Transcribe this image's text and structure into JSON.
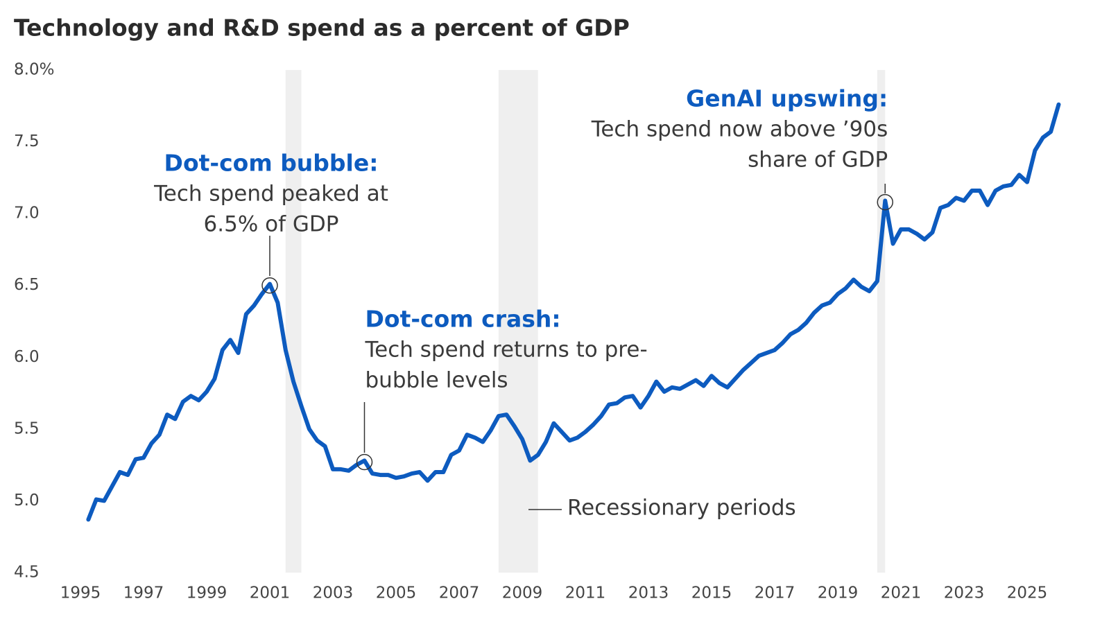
{
  "chart_data": {
    "type": "line",
    "title": "Technology and R&D spend as a percent of GDP",
    "x": [
      1995.25,
      1995.5,
      1995.75,
      1996,
      1996.25,
      1996.5,
      1996.75,
      1997,
      1997.25,
      1997.5,
      1997.75,
      1998,
      1998.25,
      1998.5,
      1998.75,
      1999,
      1999.25,
      1999.5,
      1999.75,
      2000,
      2000.25,
      2000.5,
      2000.75,
      2001,
      2001.25,
      2001.5,
      2001.75,
      2002,
      2002.25,
      2002.5,
      2002.75,
      2003,
      2003.25,
      2003.5,
      2003.75,
      2004,
      2004.25,
      2004.5,
      2004.75,
      2005,
      2005.25,
      2005.5,
      2005.75,
      2006,
      2006.25,
      2006.5,
      2006.75,
      2007,
      2007.25,
      2007.5,
      2007.75,
      2008,
      2008.25,
      2008.5,
      2008.75,
      2009,
      2009.25,
      2009.5,
      2009.75,
      2010,
      2010.25,
      2010.5,
      2010.75,
      2011,
      2011.25,
      2011.5,
      2011.75,
      2012,
      2012.25,
      2012.5,
      2012.75,
      2013,
      2013.25,
      2013.5,
      2013.75,
      2014,
      2014.25,
      2014.5,
      2014.75,
      2015,
      2015.25,
      2015.5,
      2015.75,
      2016,
      2016.25,
      2016.5,
      2016.75,
      2017,
      2017.25,
      2017.5,
      2017.75,
      2018,
      2018.25,
      2018.5,
      2018.75,
      2019,
      2019.25,
      2019.5,
      2019.75,
      2020,
      2020.25,
      2020.5,
      2020.75,
      2021,
      2021.25,
      2021.5,
      2021.75,
      2022,
      2022.25,
      2022.5,
      2022.75,
      2023,
      2023.25,
      2023.5,
      2023.75,
      2024,
      2024.25,
      2024.5,
      2024.75,
      2025,
      2025.25,
      2025.5,
      2025.75,
      2026
    ],
    "values": [
      4.87,
      5.01,
      5.0,
      5.1,
      5.2,
      5.18,
      5.29,
      5.3,
      5.4,
      5.46,
      5.6,
      5.57,
      5.69,
      5.73,
      5.7,
      5.76,
      5.85,
      6.05,
      6.12,
      6.03,
      6.3,
      6.36,
      6.44,
      6.51,
      6.38,
      6.05,
      5.83,
      5.66,
      5.5,
      5.42,
      5.38,
      5.22,
      5.22,
      5.21,
      5.25,
      5.28,
      5.19,
      5.18,
      5.18,
      5.16,
      5.17,
      5.19,
      5.2,
      5.14,
      5.2,
      5.2,
      5.32,
      5.35,
      5.46,
      5.44,
      5.41,
      5.49,
      5.59,
      5.6,
      5.52,
      5.43,
      5.28,
      5.32,
      5.41,
      5.54,
      5.48,
      5.42,
      5.44,
      5.48,
      5.53,
      5.59,
      5.67,
      5.68,
      5.72,
      5.73,
      5.65,
      5.73,
      5.83,
      5.76,
      5.79,
      5.78,
      5.81,
      5.84,
      5.8,
      5.87,
      5.82,
      5.79,
      5.85,
      5.91,
      5.96,
      6.01,
      6.03,
      6.05,
      6.1,
      6.16,
      6.19,
      6.24,
      6.31,
      6.36,
      6.38,
      6.44,
      6.48,
      6.54,
      6.49,
      6.46,
      6.53,
      7.09,
      6.79,
      6.89,
      6.89,
      6.86,
      6.82,
      6.87,
      7.04,
      7.06,
      7.11,
      7.09,
      7.16,
      7.16,
      7.06,
      7.16,
      7.19,
      7.2,
      7.27,
      7.22,
      7.44,
      7.53,
      7.57,
      7.76
    ],
    "color": "#0d5bbf",
    "xlim": [
      1995,
      2026.25
    ],
    "xticks": [
      1995,
      1997,
      1999,
      2001,
      2003,
      2005,
      2007,
      2009,
      2011,
      2013,
      2015,
      2017,
      2019,
      2021,
      2023,
      2025
    ],
    "ylim": [
      4.5,
      8.0
    ],
    "yticks": [
      {
        "value": 4.5,
        "label": "4.5"
      },
      {
        "value": 5.0,
        "label": "5.0"
      },
      {
        "value": 5.5,
        "label": "5.5"
      },
      {
        "value": 6.0,
        "label": "6.0"
      },
      {
        "value": 6.5,
        "label": "6.5"
      },
      {
        "value": 7.0,
        "label": "7.0"
      },
      {
        "value": 7.5,
        "label": "7.5"
      },
      {
        "value": 8.0,
        "label": "8.0%"
      }
    ],
    "grid": false,
    "recessions": [
      [
        2001.5,
        2002
      ],
      [
        2008.25,
        2009.5
      ],
      [
        2020.25,
        2020.5
      ]
    ],
    "recession_color": "#efefef",
    "recession_label": "Recessionary periods",
    "annotations": [
      {
        "title": "Dot-com bubble:",
        "text": [
          "Tech spend peaked at",
          "6.5% of GDP"
        ],
        "x": 2001,
        "y": 6.5
      },
      {
        "title": "Dot-com crash:",
        "text": [
          "Tech spend returns to pre-",
          "bubble levels"
        ],
        "x": 2004,
        "y": 5.27
      },
      {
        "title": "GenAI upswing:",
        "text": [
          "Tech spend now above ’90s",
          "share of GDP"
        ],
        "x": 2020.5,
        "y": 7.08
      }
    ]
  }
}
